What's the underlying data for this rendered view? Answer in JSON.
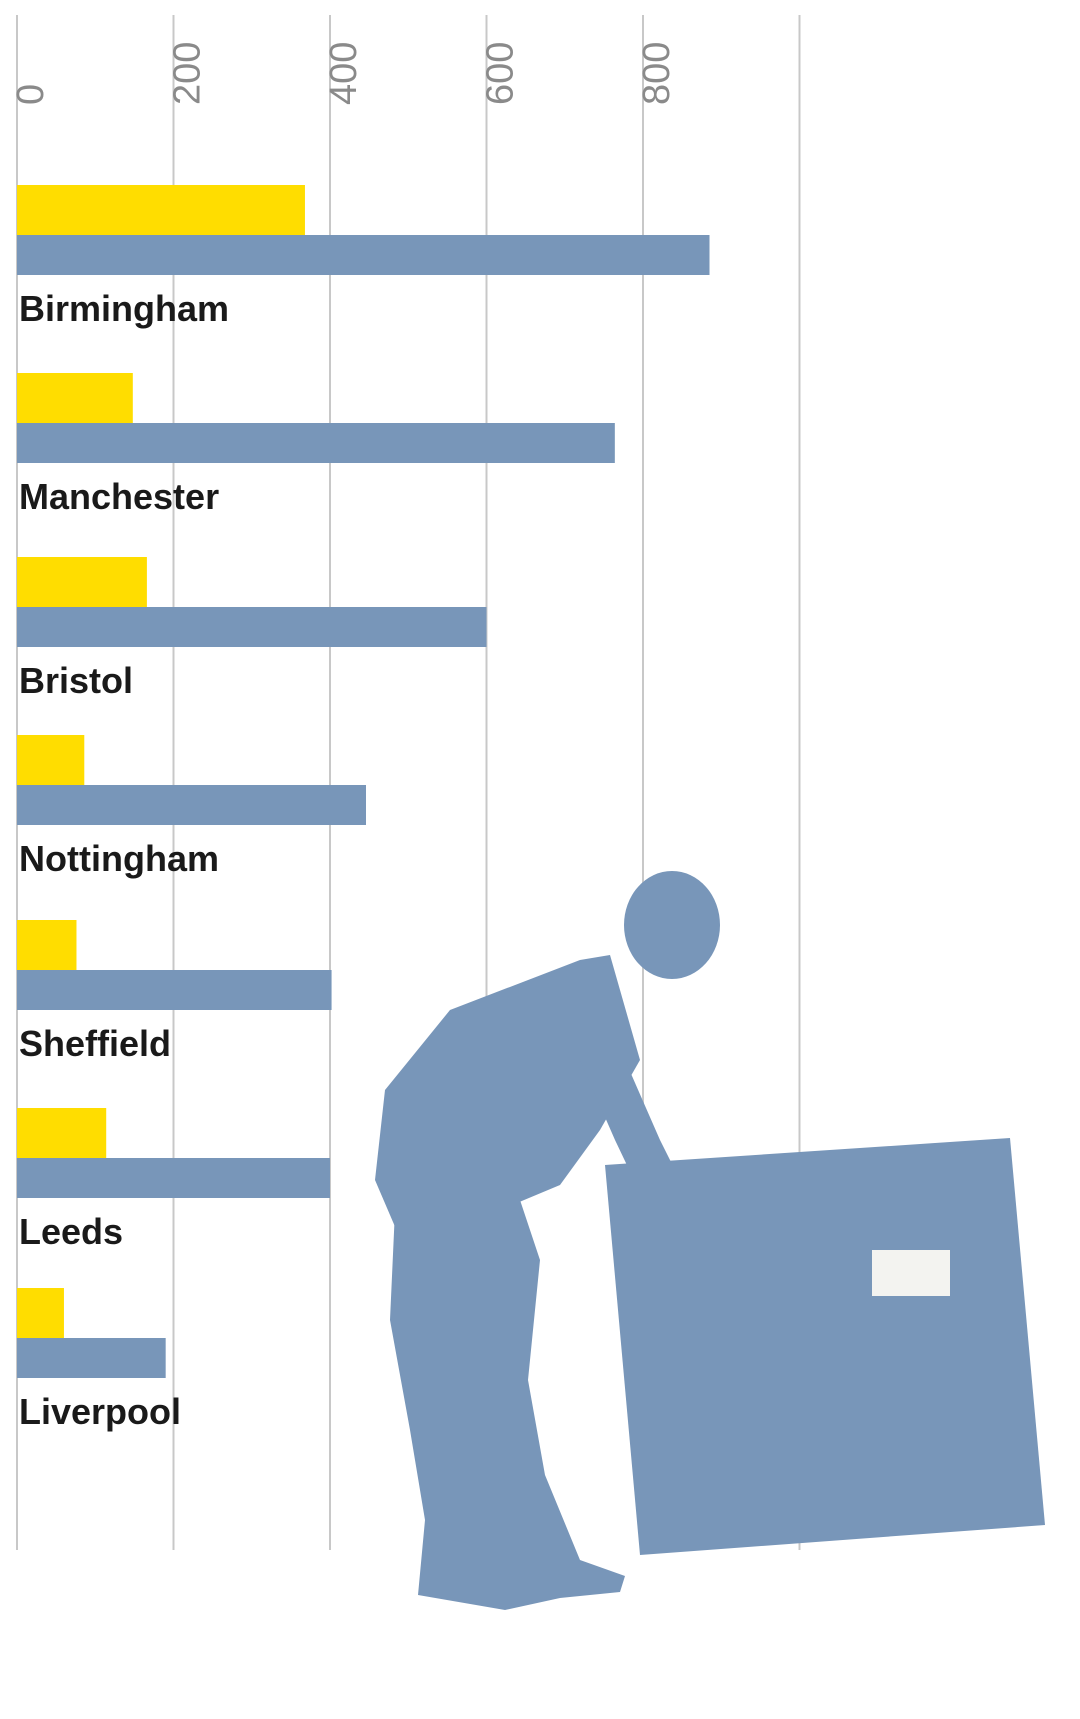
{
  "chart_data": {
    "type": "bar",
    "orientation": "horizontal",
    "categories": [
      "Birmingham",
      "Manchester",
      "Bristol",
      "Nottingham",
      "Sheffield",
      "Leeds",
      "Liverpool"
    ],
    "series": [
      {
        "color": "#ffdd00",
        "values": [
          368,
          148,
          166,
          86,
          76,
          114,
          60
        ]
      },
      {
        "color": "#7896b9",
        "values": [
          885,
          764,
          600,
          446,
          402,
          400,
          190
        ]
      }
    ],
    "xlim": [
      0,
      1000
    ],
    "ticks": [
      0,
      200,
      400,
      600,
      800
    ],
    "tick_labels": [
      "0",
      "200",
      "400",
      "600",
      "800"
    ],
    "grid": true,
    "axis_position": "top",
    "title": "",
    "xlabel": "",
    "ylabel": ""
  },
  "illustration": {
    "subject": "man-lifting-box",
    "color": "#7896b9"
  }
}
